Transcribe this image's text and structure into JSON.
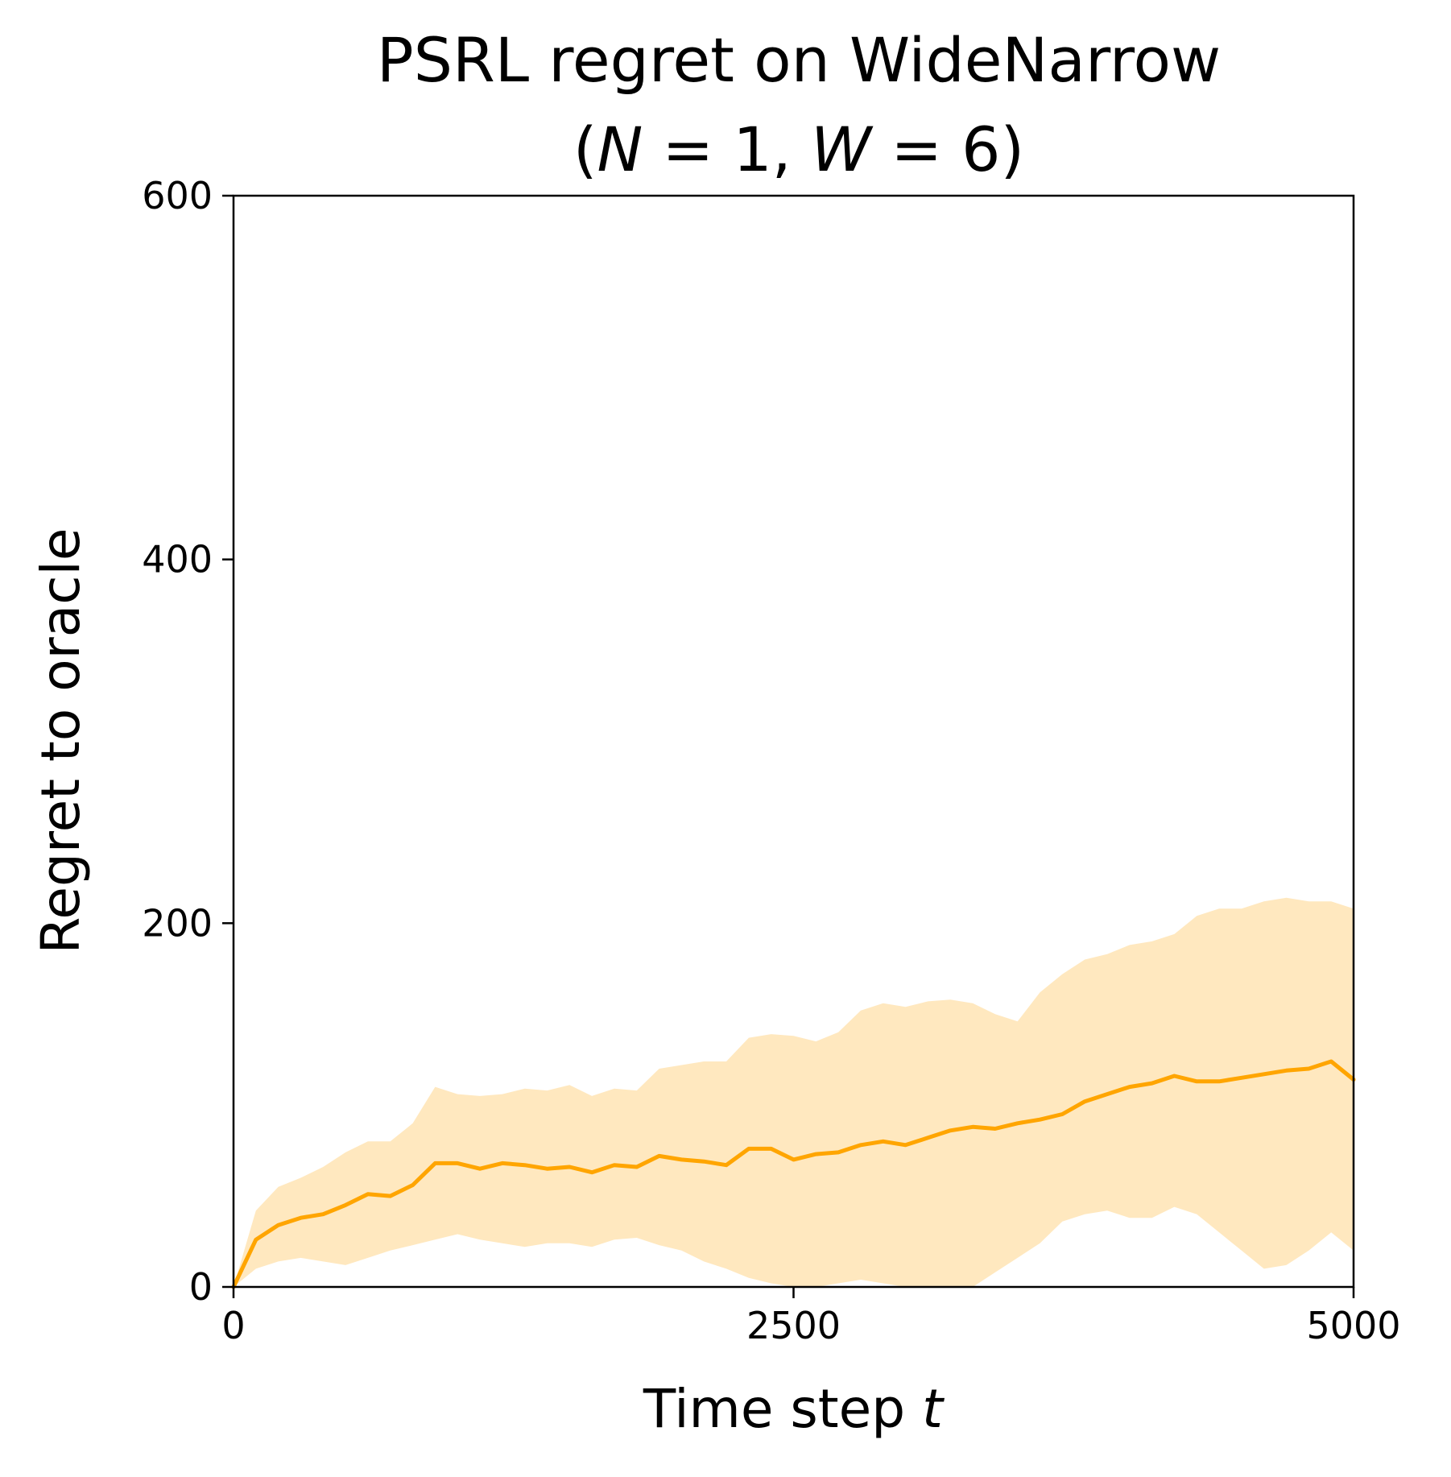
{
  "chart_data": {
    "type": "line",
    "title": "PSRL regret on WideNarrow",
    "subtitle": {
      "open": "(",
      "n_symbol": "N",
      "n_eq": " = 1, ",
      "w_symbol": "W",
      "w_eq": " = 6",
      "close": ")"
    },
    "xlabel": "Time step",
    "xlabel_var": "t",
    "ylabel": "Regret to oracle",
    "xlim": [
      0,
      5000
    ],
    "ylim": [
      0,
      600
    ],
    "xticks": [
      0,
      2500,
      5000
    ],
    "xtick_labels": [
      "0",
      "2500",
      "5000"
    ],
    "yticks": [
      0,
      200,
      400,
      600
    ],
    "ytick_labels": [
      "0",
      "200",
      "400",
      "600"
    ],
    "grid": false,
    "legend": null,
    "colors": {
      "line": "#FFA500",
      "band": "#FFE8BF"
    },
    "series": [
      {
        "x": [
          0,
          100,
          200,
          300,
          400,
          500,
          600,
          700,
          800,
          900,
          1000,
          1100,
          1200,
          1300,
          1400,
          1500,
          1600,
          1700,
          1800,
          1900,
          2000,
          2100,
          2200,
          2300,
          2400,
          2500,
          2600,
          2700,
          2800,
          2900,
          3000,
          3100,
          3200,
          3300,
          3400,
          3500,
          3600,
          3700,
          3800,
          3900,
          4000,
          4100,
          4200,
          4300,
          4400,
          4500,
          4600,
          4700,
          4800,
          4900,
          5000
        ],
        "mean": [
          0,
          26,
          34,
          38,
          40,
          45,
          51,
          50,
          56,
          68,
          68,
          65,
          68,
          67,
          65,
          66,
          63,
          67,
          66,
          72,
          70,
          69,
          67,
          76,
          76,
          70,
          73,
          74,
          78,
          80,
          78,
          82,
          86,
          88,
          87,
          90,
          92,
          95,
          102,
          106,
          110,
          112,
          116,
          113,
          113,
          115,
          117,
          119,
          120,
          124,
          114
        ],
        "lower": [
          0,
          10,
          14,
          16,
          14,
          12,
          16,
          20,
          23,
          26,
          29,
          26,
          24,
          22,
          24,
          24,
          22,
          26,
          27,
          23,
          20,
          14,
          10,
          5,
          2,
          0,
          0,
          2,
          4,
          2,
          0,
          0,
          0,
          0,
          8,
          16,
          24,
          36,
          40,
          42,
          38,
          38,
          44,
          40,
          30,
          20,
          10,
          12,
          20,
          30,
          20
        ],
        "upper": [
          0,
          42,
          55,
          60,
          66,
          74,
          80,
          80,
          90,
          110,
          106,
          105,
          106,
          109,
          108,
          111,
          105,
          109,
          108,
          120,
          122,
          124,
          124,
          137,
          139,
          138,
          135,
          140,
          152,
          156,
          154,
          157,
          158,
          156,
          150,
          146,
          162,
          172,
          180,
          183,
          188,
          190,
          194,
          204,
          208,
          208,
          212,
          214,
          212,
          212,
          208
        ]
      }
    ]
  }
}
